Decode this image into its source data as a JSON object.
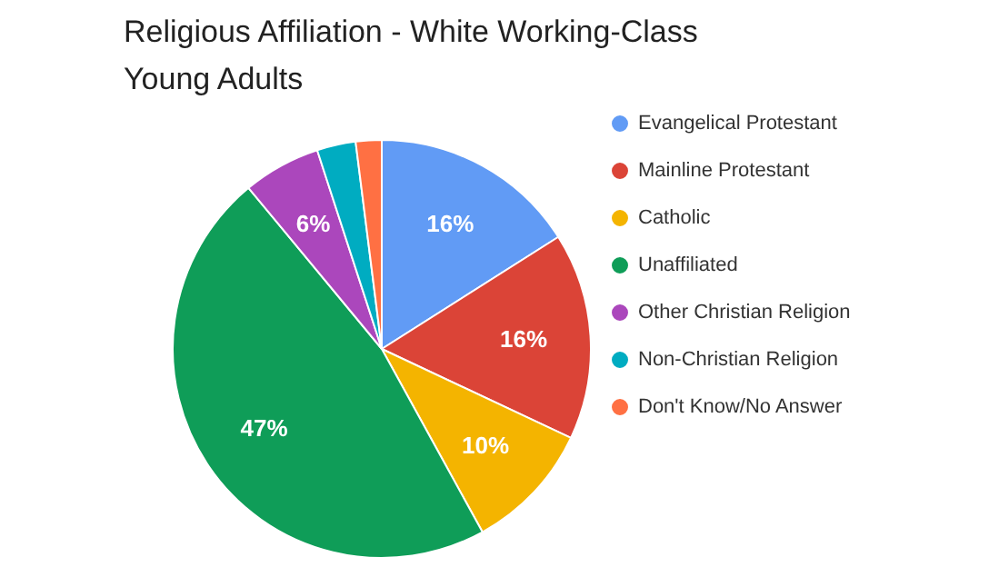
{
  "chart_data": {
    "type": "pie",
    "title": "Religious Affiliation - White Working-Class Young Adults",
    "categories": [
      "Evangelical Protestant",
      "Mainline Protestant",
      "Catholic",
      "Unaffiliated",
      "Other Christian Religion",
      "Non-Christian Religion",
      "Don't Know/No Answer"
    ],
    "values": [
      16,
      16,
      10,
      47,
      6,
      3,
      2
    ],
    "value_labels": [
      "16%",
      "16%",
      "10%",
      "47%",
      "6%",
      null,
      null
    ],
    "colors": [
      "#619bf5",
      "#db4437",
      "#f4b400",
      "#0f9d58",
      "#ab47bc",
      "#00acc1",
      "#ff7043"
    ],
    "legend": "right"
  }
}
